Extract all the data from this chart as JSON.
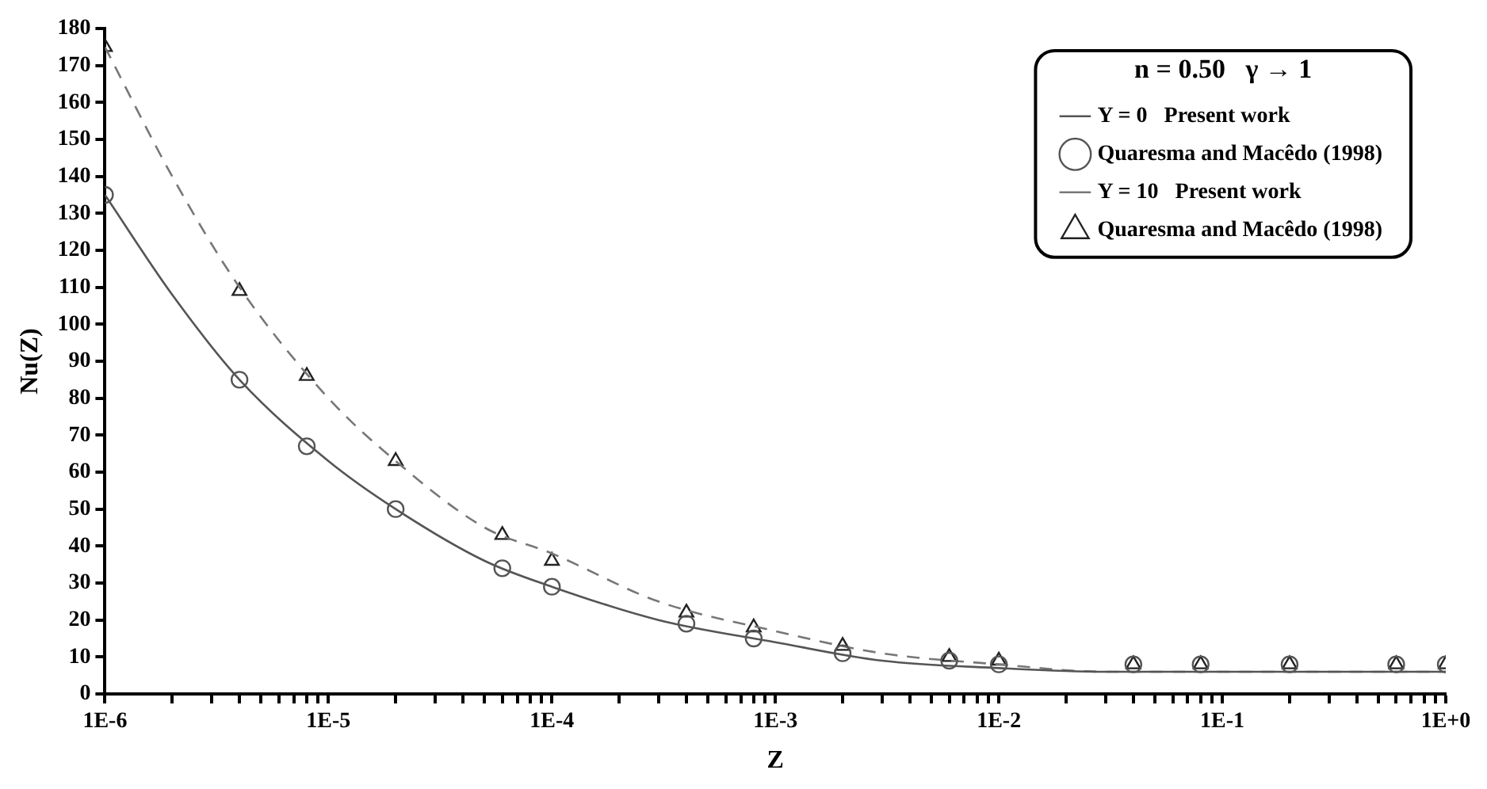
{
  "chart_data": {
    "type": "line",
    "xlabel": "Z",
    "ylabel": "Nu(Z)",
    "legend_title": "n = 0.50   γ → 1",
    "log": "x",
    "xlim": [
      1e-06,
      1
    ],
    "ylim": [
      0,
      180
    ],
    "xticks": [
      {
        "value": 1e-06,
        "label": "1E-6"
      },
      {
        "value": 1e-05,
        "label": "1E-5"
      },
      {
        "value": 0.0001,
        "label": "1E-4"
      },
      {
        "value": 0.001,
        "label": "1E-3"
      },
      {
        "value": 0.01,
        "label": "1E-2"
      },
      {
        "value": 0.1,
        "label": "1E-1"
      },
      {
        "value": 1,
        "label": "1E+0"
      }
    ],
    "yticks": [
      0,
      10,
      20,
      30,
      40,
      50,
      60,
      70,
      80,
      90,
      100,
      110,
      120,
      130,
      140,
      150,
      160,
      170,
      180
    ],
    "grid": false,
    "legend": "top right",
    "series": [
      {
        "name": "Y = 0   Present work",
        "type": "line",
        "color": "#555555",
        "line_style": "solid",
        "marker": "none",
        "x": [
          1e-06,
          2e-06,
          4e-06,
          1e-05,
          2e-05,
          5e-05,
          0.0001,
          0.0003,
          0.001,
          0.003,
          0.01,
          0.03,
          0.1,
          1
        ],
        "values": [
          135,
          108,
          85,
          63,
          50,
          36,
          29,
          20,
          14,
          9,
          7,
          6,
          6,
          6
        ]
      },
      {
        "name": "Quaresma and Macêdo (1998)",
        "type": "scatter",
        "color": "#555555",
        "marker": "circle",
        "x": [
          1e-06,
          4e-06,
          8e-06,
          2e-05,
          6e-05,
          0.0001,
          0.0004,
          0.0008,
          0.002,
          0.006,
          0.01,
          0.04,
          0.08,
          0.2,
          0.6,
          1
        ],
        "values": [
          135,
          85,
          67,
          50,
          34,
          29,
          19,
          15,
          11,
          9,
          8,
          8,
          8,
          8,
          8,
          8
        ]
      },
      {
        "name": "Y = 10   Present work",
        "type": "line",
        "color": "#777777",
        "line_style": "dashed",
        "marker": "none",
        "x": [
          1e-06,
          2e-06,
          4e-06,
          1e-05,
          2e-05,
          5e-05,
          0.0001,
          0.0003,
          0.001,
          0.003,
          0.01,
          0.03,
          0.1,
          1
        ],
        "values": [
          175,
          140,
          110,
          80,
          63,
          45,
          38,
          25,
          17,
          11,
          8,
          6,
          6,
          6
        ]
      },
      {
        "name": "Quaresma and Macêdo (1998)",
        "type": "scatter",
        "color": "#222222",
        "marker": "triangle",
        "x": [
          1e-06,
          4e-06,
          8e-06,
          2e-05,
          6e-05,
          0.0001,
          0.0004,
          0.0008,
          0.002,
          0.006,
          0.01,
          0.04,
          0.08,
          0.2,
          0.6,
          1
        ],
        "values": [
          175,
          109,
          86,
          63,
          43,
          36,
          22,
          18,
          13,
          10,
          9,
          8,
          8,
          8,
          8,
          8
        ]
      }
    ]
  }
}
